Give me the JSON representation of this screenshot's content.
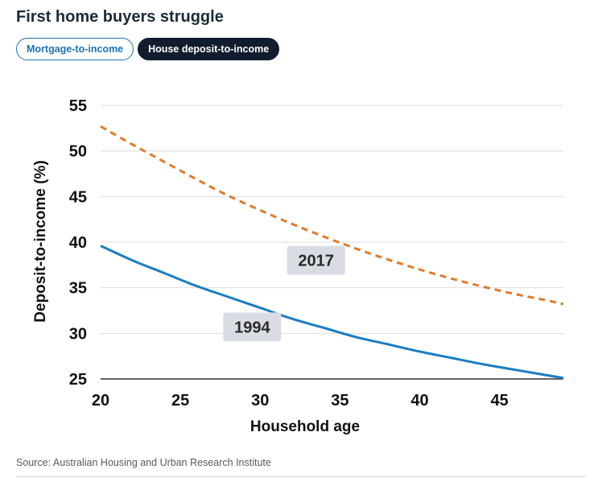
{
  "header": {
    "title": "First home buyers struggle"
  },
  "tabs": [
    {
      "label": "Mortgage-to-income",
      "active": false
    },
    {
      "label": "House deposit-to-income",
      "active": true
    }
  ],
  "source": "Source: Australian Housing and Urban Research Institute",
  "chart_data": {
    "type": "line",
    "xlabel": "Household age",
    "ylabel": "Deposit-to-income (%)",
    "xlim": [
      20,
      49
    ],
    "ylim": [
      25,
      55
    ],
    "xticks": [
      20,
      25,
      30,
      35,
      40,
      45
    ],
    "yticks": [
      25,
      30,
      35,
      40,
      45,
      50,
      55
    ],
    "grid": true,
    "series": [
      {
        "name": "2017",
        "color": "#e07b2a",
        "style": "dashed",
        "x": [
          20,
          22,
          24,
          26,
          28,
          30,
          32,
          34,
          36,
          38,
          40,
          42,
          44,
          46,
          48,
          49
        ],
        "y": [
          52.7,
          50.7,
          48.8,
          46.9,
          45.1,
          43.5,
          42.0,
          40.6,
          39.3,
          38.1,
          37.0,
          36.0,
          35.1,
          34.3,
          33.6,
          33.2
        ],
        "label_at": [
          33.5,
          38
        ]
      },
      {
        "name": "1994",
        "color": "#1a7dc4",
        "style": "solid",
        "x": [
          20,
          22,
          24,
          26,
          28,
          30,
          32,
          34,
          36,
          38,
          40,
          42,
          44,
          46,
          48,
          49
        ],
        "y": [
          39.6,
          38.0,
          36.6,
          35.2,
          34.0,
          32.8,
          31.6,
          30.6,
          29.6,
          28.8,
          28.0,
          27.3,
          26.6,
          26.0,
          25.4,
          25.1
        ],
        "label_at": [
          29.5,
          30.7
        ]
      }
    ]
  }
}
